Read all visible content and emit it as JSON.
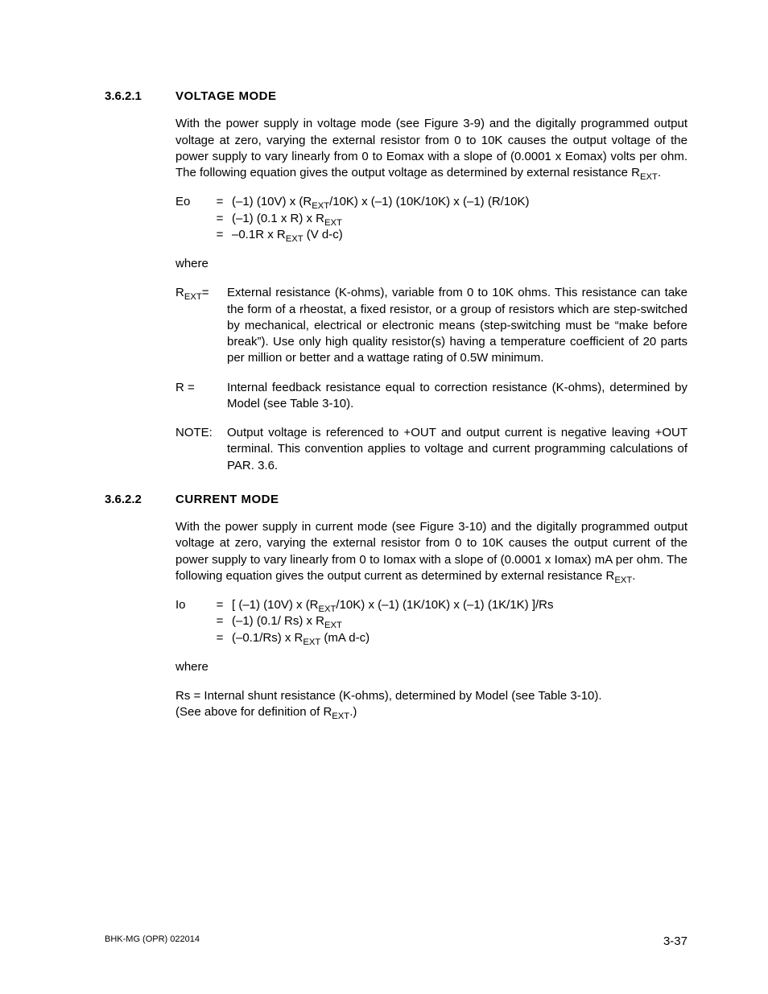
{
  "sections": [
    {
      "number": "3.6.2.1",
      "title": "VOLTAGE MODE",
      "intro": "With the power supply in voltage mode (see Figure 3-9) and the digitally programmed output voltage at zero, varying the external resistor from 0 to 10K causes the output voltage of the power supply to vary linearly from 0 to Eomax with a slope of (0.0001 x Eomax) volts per ohm. The following equation gives the output voltage as determined by external resistance R",
      "intro_sub": "EXT",
      "intro_tail": ".",
      "eq_var": "Eo",
      "eq_lines": [
        {
          "pre": "(–1) (10V) x (R",
          "sub": "EXT",
          "post": "/10K) x (–1) (10K/10K) x (–1) (R/10K)"
        },
        {
          "pre": "(–1) (0.1 x R) x R",
          "sub": "EXT",
          "post": ""
        },
        {
          "pre": "–0.1R x R",
          "sub": "EXT",
          "post": " (V d-c)"
        }
      ],
      "where": "where",
      "defs": [
        {
          "label_pre": "R",
          "label_sub": "EXT",
          "label_post": "=",
          "text": "External resistance (K-ohms), variable from 0 to 10K ohms. This resistance can take the form of a rheostat, a fixed resistor, or a group of resistors which are step-switched by mechanical, electrical or electronic means (step-switching must be “make before break”). Use only high quality resistor(s) having a temperature coefficient of 20 parts per million or better and a wattage rating of 0.5W minimum."
        },
        {
          "label_pre": "R =",
          "label_sub": "",
          "label_post": "",
          "text": "Internal feedback resistance equal to correction resistance (K-ohms), determined by Model (see Table 3-10)."
        },
        {
          "label_pre": "NOTE:",
          "label_sub": "",
          "label_post": "",
          "text": "Output voltage is referenced to +OUT and output current is negative leaving +OUT terminal. This convention applies to voltage and current programming calculations of PAR. 3.6."
        }
      ]
    },
    {
      "number": "3.6.2.2",
      "title": "CURRENT MODE",
      "intro": "With the power supply in current mode (see Figure 3-10) and the digitally programmed output voltage at zero, varying the external resistor from 0 to 10K causes the output current of the power supply to vary linearly from 0 to Iomax with a slope of (0.0001 x Iomax) mA per ohm. The following equation gives the output current as determined by external resistance R",
      "intro_sub": "EXT",
      "intro_tail": ".",
      "eq_var": "Io",
      "eq_lines": [
        {
          "pre": "[ (–1) (10V) x (R",
          "sub": "EXT",
          "post": "/10K) x (–1) (1K/10K) x (–1) (1K/1K) ]/Rs"
        },
        {
          "pre": "(–1) (0.1/ Rs) x R",
          "sub": "EXT",
          "post": ""
        },
        {
          "pre": "(–0.1/Rs) x R",
          "sub": "EXT",
          "post": " (mA d-c)"
        }
      ],
      "where": "where",
      "defs_simple": [
        {
          "line_pre": "Rs =   Internal shunt resistance (K-ohms), determined by Model (see Table 3-10).",
          "line_sub": "",
          "line_post": ""
        },
        {
          "line_pre": "(See above for definition of R",
          "line_sub": "EXT",
          "line_post": ".)"
        }
      ]
    }
  ],
  "footer": {
    "left": "BHK-MG (OPR) 022014",
    "right": "3-37"
  }
}
